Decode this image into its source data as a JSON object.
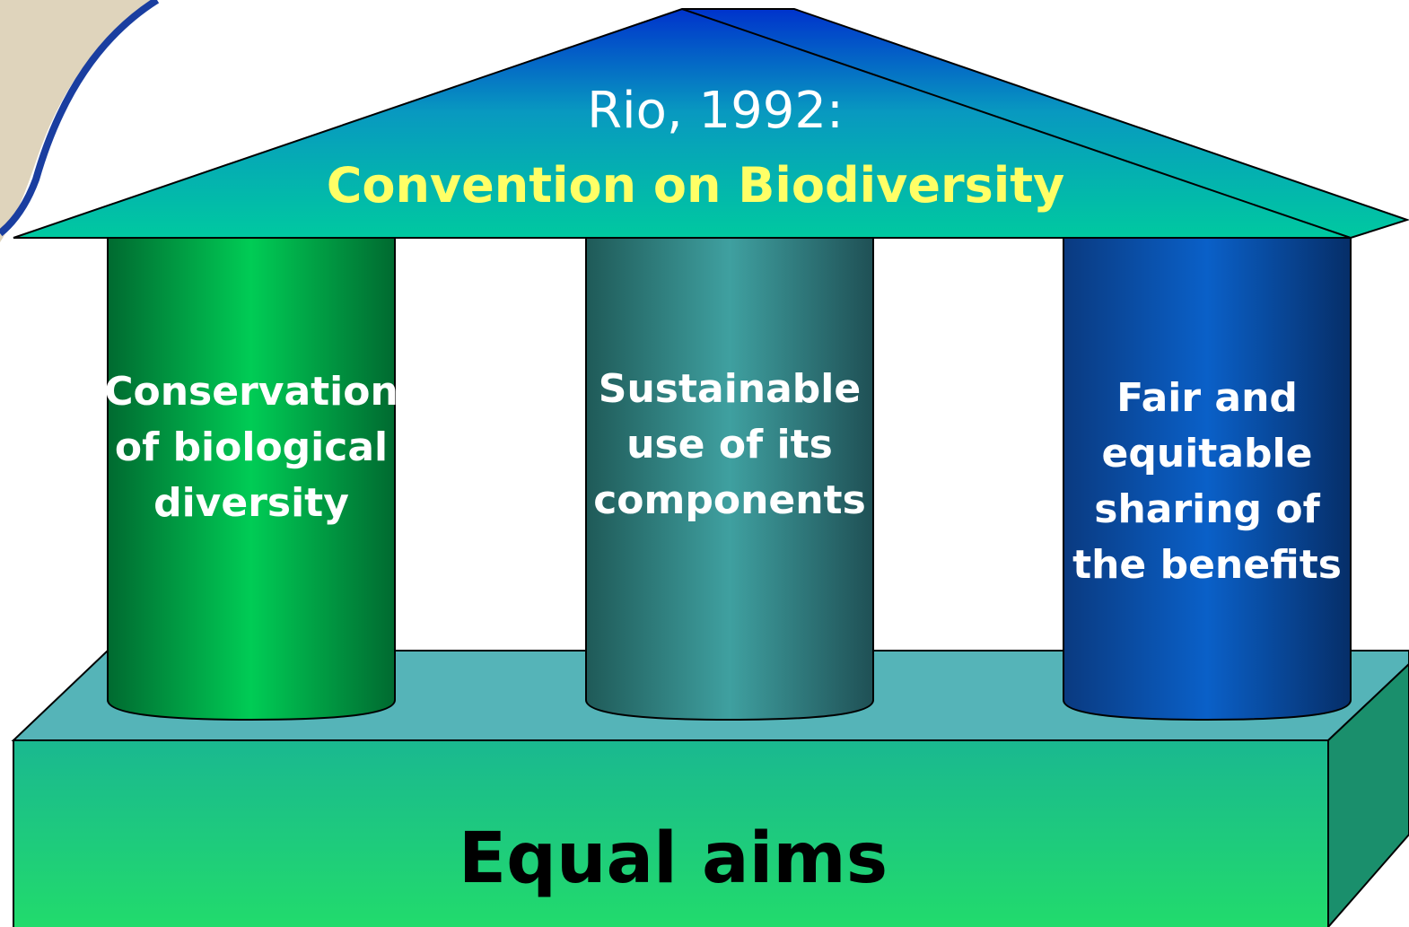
{
  "roof": {
    "line1": "Rio, 1992:",
    "line2": "Convention on Biodiversity"
  },
  "pillars": [
    {
      "lines": [
        "Conservation",
        "of biological",
        "diversity"
      ]
    },
    {
      "lines": [
        "Sustainable",
        "use of its",
        "components"
      ]
    },
    {
      "lines": [
        "Fair and",
        "equitable",
        "sharing of",
        "the benefits"
      ]
    }
  ],
  "base": {
    "label": "Equal aims"
  }
}
